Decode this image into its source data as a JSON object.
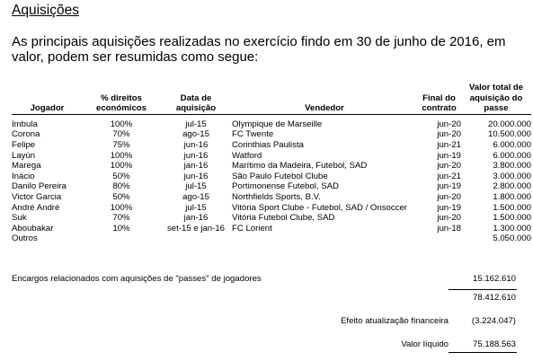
{
  "title": "Aquisições",
  "intro": "As principais aquisições realizadas no exercício findo em 30 de junho de 2016, em valor, podem ser resumidas como segue:",
  "table": {
    "headers": {
      "jogador": "Jogador",
      "direitos": "% direitos económicos",
      "data": "Data de aquisição",
      "vendedor": "Vendedor",
      "final": "Final do contrato",
      "valor": "Valor total de aquisição do passe"
    },
    "rows": [
      {
        "jogador": "Imbula",
        "direitos": "100%",
        "data": "jul-15",
        "vendedor": "Olympique de Marseille",
        "final": "jun-20",
        "valor": "20.000.000"
      },
      {
        "jogador": "Corona",
        "direitos": "70%",
        "data": "ago-15",
        "vendedor": "FC Twente",
        "final": "jun-20",
        "valor": "10.500.000"
      },
      {
        "jogador": "Felipe",
        "direitos": "75%",
        "data": "jun-16",
        "vendedor": "Corinthias Paulista",
        "final": "jun-21",
        "valor": "6.000.000"
      },
      {
        "jogador": "Layún",
        "direitos": "100%",
        "data": "jun-16",
        "vendedor": "Watford",
        "final": "jun-19",
        "valor": "6.000.000"
      },
      {
        "jogador": "Marega",
        "direitos": "100%",
        "data": "jan-16",
        "vendedor": "Marítimo da Madeira, Futebol, SAD",
        "final": "jun-20",
        "valor": "3.800.000"
      },
      {
        "jogador": "Inácio",
        "direitos": "50%",
        "data": "jun-16",
        "vendedor": "São Paulo Futebol Clube",
        "final": "jun-21",
        "valor": "3.000.000"
      },
      {
        "jogador": "Danilo Pereira",
        "direitos": "80%",
        "data": "jul-15",
        "vendedor": "Portimonense Futebol, SAD",
        "final": "jun-19",
        "valor": "2.800.000"
      },
      {
        "jogador": "Victor Garcia",
        "direitos": "50%",
        "data": "ago-15",
        "vendedor": "Northfields Sports, B.V.",
        "final": "jun-20",
        "valor": "1.800.000"
      },
      {
        "jogador": "André André",
        "direitos": "100%",
        "data": "jul-15",
        "vendedor": "Vitória Sport Clube - Futebol, SAD / Onsoccer",
        "final": "jun-19",
        "valor": "1.500.000"
      },
      {
        "jogador": "Suk",
        "direitos": "70%",
        "data": "jan-16",
        "vendedor": "Vitória Futebol Clube, SAD",
        "final": "jun-20",
        "valor": "1.500.000"
      },
      {
        "jogador": "Aboubakar",
        "direitos": "10%",
        "data": "set-15 e jan-16",
        "vendedor": "FC Lorient",
        "final": "jun-18",
        "valor": "1.300.000"
      },
      {
        "jogador": "Outros",
        "direitos": "",
        "data": "",
        "vendedor": "",
        "final": "",
        "valor": "5.050.000"
      }
    ]
  },
  "encargos": {
    "label": "Encargos relacionados com aquisições de \"passes\" de jogadores",
    "value": "15.162.610"
  },
  "subtotal": {
    "value": "78.412.610"
  },
  "efeito": {
    "label": "Efeito atualização financeira",
    "value": "(3.224.047)"
  },
  "liquido": {
    "label": "Valor líquido",
    "value": "75.188.563"
  }
}
